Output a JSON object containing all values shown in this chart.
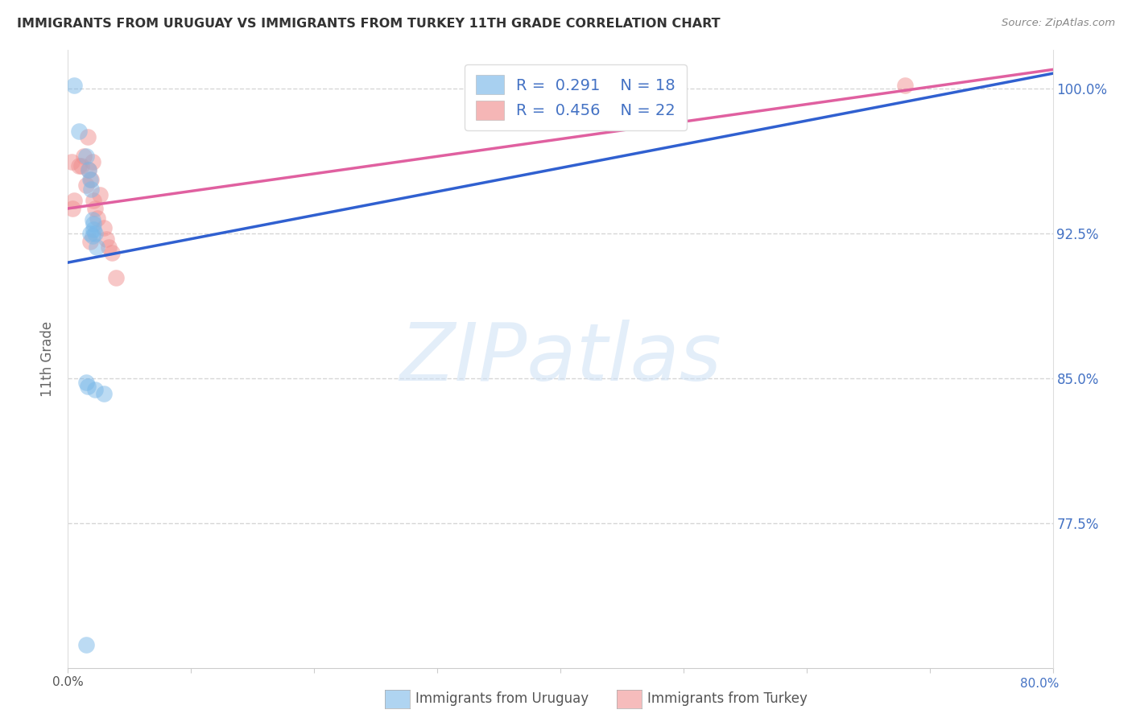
{
  "title": "IMMIGRANTS FROM URUGUAY VS IMMIGRANTS FROM TURKEY 11TH GRADE CORRELATION CHART",
  "source": "Source: ZipAtlas.com",
  "ylabel": "11th Grade",
  "xlim": [
    0.0,
    80.0
  ],
  "ylim": [
    70.0,
    102.0
  ],
  "yticks": [
    77.5,
    85.0,
    92.5,
    100.0
  ],
  "ytick_labels": [
    "77.5%",
    "85.0%",
    "92.5%",
    "100.0%"
  ],
  "grid_color": "#cccccc",
  "background_color": "#ffffff",
  "watermark_text": "ZIPatlas",
  "legend_text_color": "#4472c4",
  "R_uruguay": "0.291",
  "N_uruguay": "18",
  "R_turkey": "0.456",
  "N_turkey": "22",
  "color_uruguay": "#7ab8e8",
  "color_turkey": "#f09090",
  "trendline_color_uruguay": "#3060d0",
  "trendline_color_turkey": "#e060a0",
  "legend_label_uruguay": "Immigrants from Uruguay",
  "legend_label_turkey": "Immigrants from Turkey",
  "trendline_uy_x0": 0.0,
  "trendline_uy_y0": 91.0,
  "trendline_uy_x1": 80.0,
  "trendline_uy_y1": 100.8,
  "trendline_tr_x0": 0.0,
  "trendline_tr_y0": 93.8,
  "trendline_tr_x1": 80.0,
  "trendline_tr_y1": 101.0,
  "uruguay_x": [
    0.5,
    0.9,
    1.5,
    1.7,
    1.8,
    1.9,
    2.0,
    2.05,
    2.1,
    2.2,
    2.3,
    2.9,
    1.5,
    1.6,
    1.8,
    2.0,
    2.2,
    1.5
  ],
  "uruguay_y": [
    100.2,
    97.8,
    96.5,
    95.8,
    95.3,
    94.8,
    93.2,
    93.0,
    92.7,
    92.5,
    91.8,
    84.2,
    84.8,
    84.6,
    92.5,
    92.4,
    84.4,
    71.2
  ],
  "turkey_x": [
    0.3,
    0.5,
    0.9,
    1.3,
    1.6,
    1.7,
    1.9,
    2.1,
    2.2,
    2.4,
    2.6,
    2.9,
    3.1,
    3.3,
    3.6,
    3.9,
    1.1,
    1.5,
    1.8,
    2.0,
    68.0,
    0.4
  ],
  "turkey_y": [
    96.2,
    94.2,
    96.0,
    96.5,
    97.5,
    95.8,
    95.3,
    94.2,
    93.8,
    93.3,
    94.5,
    92.8,
    92.2,
    91.8,
    91.5,
    90.2,
    96.0,
    95.0,
    92.1,
    96.2,
    100.2,
    93.8
  ]
}
